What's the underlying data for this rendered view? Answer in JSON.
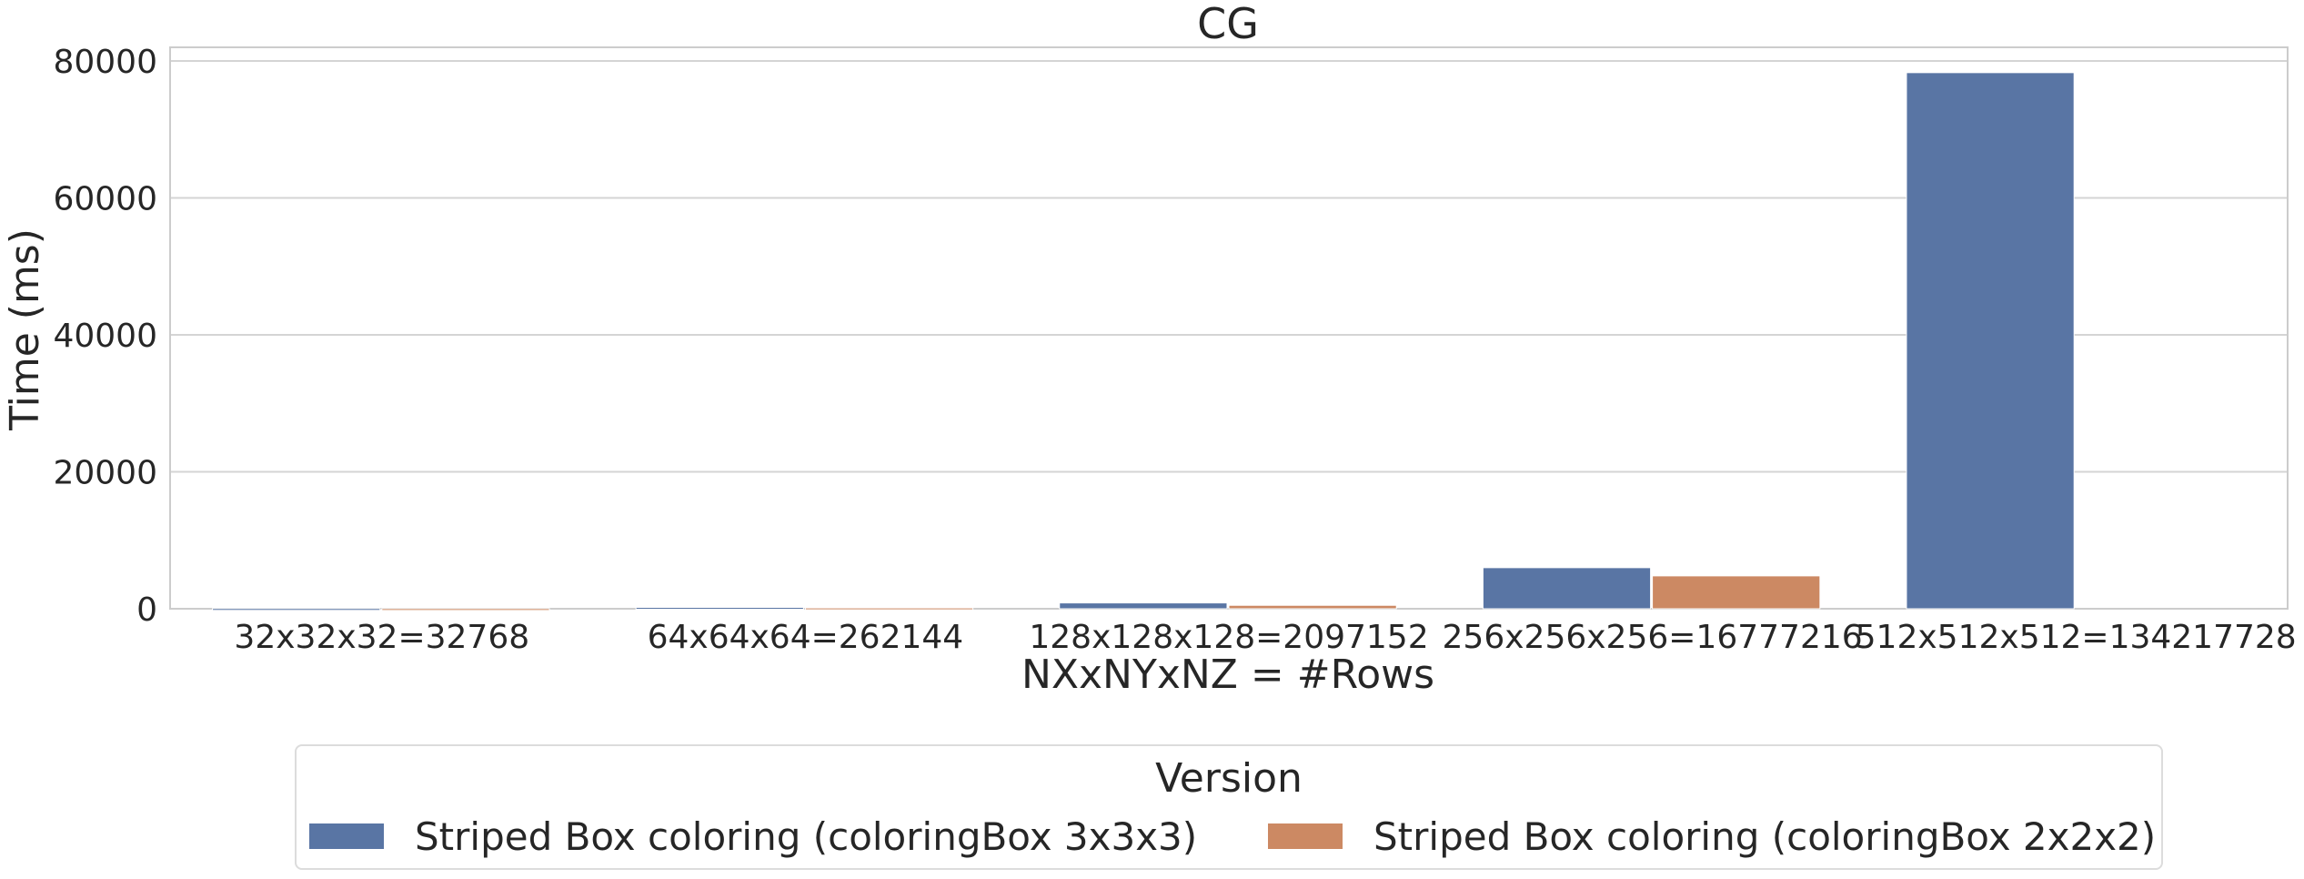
{
  "chart_data": {
    "type": "bar",
    "title": "CG",
    "xlabel": "NXxNYxNZ = #Rows",
    "ylabel": "Time (ms)",
    "ylim": [
      0,
      82000
    ],
    "yticks": [
      0,
      20000,
      40000,
      60000,
      80000
    ],
    "grid": true,
    "categories": [
      "32x32x32=32768",
      "64x64x64=262144",
      "128x128x128=2097152",
      "256x256x256=16777216",
      "512x512x512=134217728"
    ],
    "series": [
      {
        "name": "Striped Box coloring (coloringBox 3x3x3)",
        "color": "#5975a4",
        "values": [
          30,
          200,
          850,
          6000,
          78300
        ]
      },
      {
        "name": "Striped Box coloring (coloringBox 2x2x2)",
        "color": "#cc8963",
        "values": [
          20,
          120,
          500,
          4800,
          null
        ]
      }
    ],
    "legend": {
      "title": "Version",
      "placement": "bottom-center outside"
    }
  }
}
